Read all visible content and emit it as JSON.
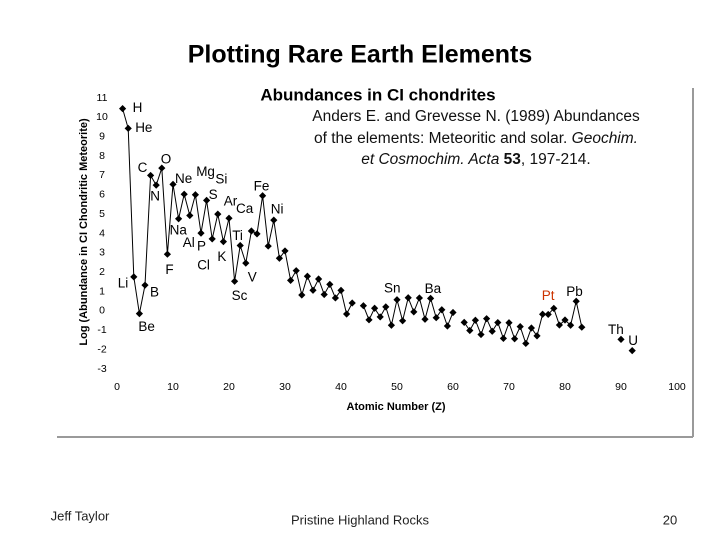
{
  "slide_title": "Plotting Rare Earth Elements",
  "reference": {
    "line1": "Anders E. and Grevesse N. (1989) Abundances",
    "line2": "of the elements: Meteoritic and solar.",
    "journal_a": "Geochim.",
    "journal_b": "et Cosmochim. Acta",
    "volume": "53",
    "pages": ", 197-214."
  },
  "footer": {
    "author": "Jeff Taylor",
    "center": "Pristine Highland Rocks",
    "page": "20"
  },
  "chart_data": {
    "type": "line",
    "title": "Abundances in CI chondrites",
    "x_label": "Atomic Number (Z)",
    "y_label": "Log (Abundance in CI Chondritic Meteorite)",
    "x": [
      1,
      2,
      3,
      4,
      5,
      6,
      7,
      8,
      9,
      10,
      11,
      12,
      13,
      14,
      15,
      16,
      17,
      18,
      19,
      20,
      21,
      22,
      23,
      24,
      25,
      26,
      27,
      28,
      29,
      30,
      31,
      32,
      33,
      34,
      35,
      36,
      37,
      38,
      39,
      40,
      41,
      42,
      43,
      44,
      45,
      46,
      47,
      48,
      49,
      50,
      51,
      52,
      53,
      54,
      55,
      56,
      57,
      58,
      59,
      60,
      61,
      62,
      63,
      64,
      65,
      66,
      67,
      68,
      69,
      70,
      71,
      72,
      73,
      74,
      75,
      76,
      77,
      78,
      79,
      80,
      81,
      82,
      83,
      84,
      85,
      86,
      87,
      88,
      89,
      90,
      91,
      92
    ],
    "series": [
      {
        "color": "#000000",
        "values": [
          10.45,
          9.43,
          1.76,
          -0.14,
          1.33,
          7.0,
          6.5,
          7.38,
          2.93,
          6.54,
          4.76,
          6.03,
          4.93,
          6.0,
          4.02,
          5.71,
          3.72,
          5.0,
          3.58,
          4.79,
          1.53,
          3.38,
          2.47,
          4.13,
          3.98,
          5.95,
          3.35,
          4.69,
          2.72,
          3.1,
          1.58,
          2.08,
          0.82,
          1.79,
          1.07,
          1.65,
          0.85,
          1.37,
          0.67,
          1.06,
          -0.16,
          0.41,
          null,
          0.27,
          -0.46,
          0.14,
          -0.31,
          0.21,
          -0.74,
          0.58,
          -0.51,
          0.68,
          -0.05,
          0.67,
          -0.43,
          0.65,
          -0.35,
          0.06,
          -0.78,
          -0.08,
          null,
          -0.59,
          -1.01,
          -0.48,
          -1.22,
          -0.4,
          -1.05,
          -0.6,
          -1.42,
          -0.61,
          -1.44,
          -0.81,
          -1.68,
          -0.88,
          -1.29,
          -0.17,
          -0.18,
          0.13,
          -0.73,
          -0.47,
          -0.74,
          0.5,
          -0.84,
          null,
          null,
          null,
          null,
          null,
          null,
          -1.47,
          null,
          -2.05
        ]
      }
    ],
    "xlim": [
      0,
      100
    ],
    "xticks": [
      0,
      10,
      20,
      30,
      40,
      50,
      60,
      70,
      80,
      90,
      100
    ],
    "ylim": [
      -3,
      11
    ],
    "yticks": [
      11,
      10,
      9,
      8,
      7,
      6,
      5,
      4,
      3,
      2,
      1,
      0,
      -1,
      -2,
      -3
    ],
    "annotations": [
      {
        "text": "H",
        "x": 1
      },
      {
        "text": "He",
        "x": 2
      },
      {
        "text": "Li",
        "x": 3
      },
      {
        "text": "Be",
        "x": 4
      },
      {
        "text": "B",
        "x": 5
      },
      {
        "text": "C",
        "x": 6
      },
      {
        "text": "N",
        "x": 7
      },
      {
        "text": "O",
        "x": 8
      },
      {
        "text": "F",
        "x": 9
      },
      {
        "text": "Ne",
        "x": 10
      },
      {
        "text": "Na",
        "x": 11
      },
      {
        "text": "Mg",
        "x": 12
      },
      {
        "text": "Al",
        "x": 13
      },
      {
        "text": "Si",
        "x": 14
      },
      {
        "text": "P",
        "x": 15
      },
      {
        "text": "S",
        "x": 16
      },
      {
        "text": "Cl",
        "x": 17
      },
      {
        "text": "Ar",
        "x": 18
      },
      {
        "text": "K",
        "x": 19
      },
      {
        "text": "Ca",
        "x": 20
      },
      {
        "text": "Sc",
        "x": 21
      },
      {
        "text": "Ti",
        "x": 22
      },
      {
        "text": "V",
        "x": 23
      },
      {
        "text": "Fe",
        "x": 26
      },
      {
        "text": "Ni",
        "x": 28
      },
      {
        "text": "Sn",
        "x": 50
      },
      {
        "text": "Ba",
        "x": 56
      },
      {
        "text": "Pt",
        "x": 78,
        "color": "#cc3300"
      },
      {
        "text": "Pb",
        "x": 82
      },
      {
        "text": "Th",
        "x": 90
      },
      {
        "text": "U",
        "x": 92
      }
    ]
  }
}
